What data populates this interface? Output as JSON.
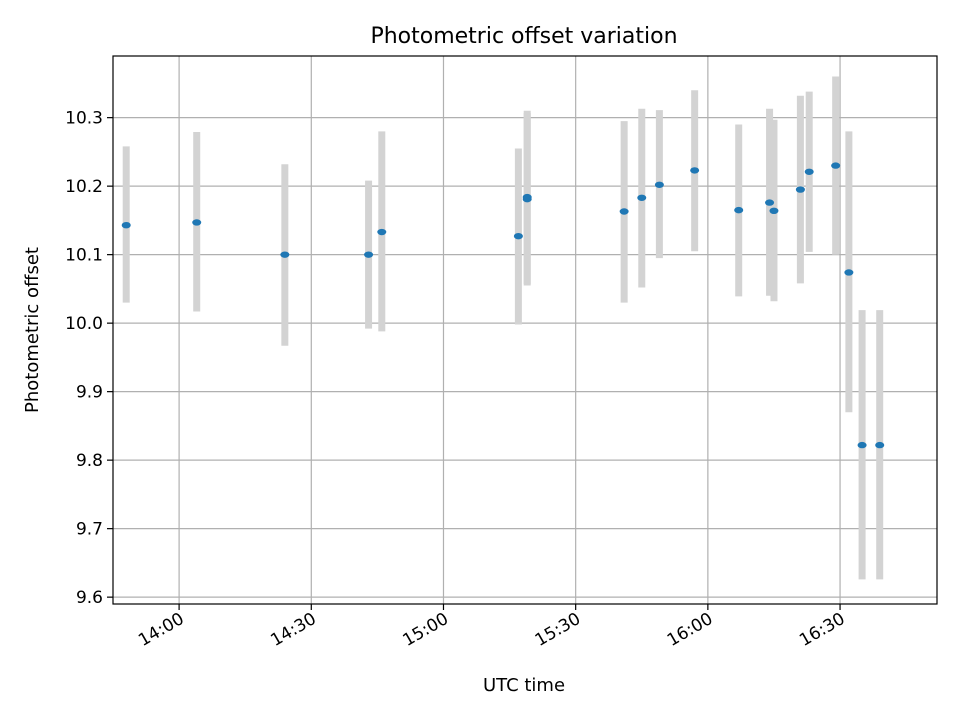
{
  "chart_data": {
    "type": "scatter",
    "title": "Photometric offset variation",
    "xlabel": "UTC time",
    "ylabel": "Photometric offset",
    "x_ticks": [
      "14:00",
      "14:30",
      "15:00",
      "15:30",
      "16:00",
      "16:30"
    ],
    "y_ticks": [
      "9.6",
      "9.7",
      "9.8",
      "9.9",
      "10.0",
      "10.1",
      "10.2",
      "10.3"
    ],
    "xlim": [
      "13:45",
      "16:52"
    ],
    "ylim": [
      9.59,
      10.39
    ],
    "grid": true,
    "colors": {
      "points": "#1f77b4",
      "errorbars": "#d3d3d3",
      "grid": "#b0b0b0"
    },
    "points": [
      {
        "x": "13:48",
        "y": 10.143,
        "ylow": 10.03,
        "yhigh": 10.258
      },
      {
        "x": "14:04",
        "y": 10.147,
        "ylow": 10.017,
        "yhigh": 10.279
      },
      {
        "x": "14:24",
        "y": 10.1,
        "ylow": 9.967,
        "yhigh": 10.232
      },
      {
        "x": "14:43",
        "y": 10.1,
        "ylow": 9.992,
        "yhigh": 10.208
      },
      {
        "x": "14:46",
        "y": 10.133,
        "ylow": 9.988,
        "yhigh": 10.28
      },
      {
        "x": "15:17",
        "y": 10.127,
        "ylow": 9.998,
        "yhigh": 10.255
      },
      {
        "x": "15:19",
        "y": 10.181,
        "ylow": 10.055,
        "yhigh": 10.307
      },
      {
        "x": "15:19",
        "y": 10.184,
        "ylow": 10.057,
        "yhigh": 10.31
      },
      {
        "x": "15:41",
        "y": 10.163,
        "ylow": 10.03,
        "yhigh": 10.295
      },
      {
        "x": "15:45",
        "y": 10.183,
        "ylow": 10.052,
        "yhigh": 10.313
      },
      {
        "x": "15:49",
        "y": 10.202,
        "ylow": 10.095,
        "yhigh": 10.311
      },
      {
        "x": "15:57",
        "y": 10.223,
        "ylow": 10.105,
        "yhigh": 10.34
      },
      {
        "x": "16:07",
        "y": 10.165,
        "ylow": 10.039,
        "yhigh": 10.29
      },
      {
        "x": "16:14",
        "y": 10.176,
        "ylow": 10.04,
        "yhigh": 10.313
      },
      {
        "x": "16:15",
        "y": 10.164,
        "ylow": 10.032,
        "yhigh": 10.297
      },
      {
        "x": "16:21",
        "y": 10.195,
        "ylow": 10.058,
        "yhigh": 10.332
      },
      {
        "x": "16:23",
        "y": 10.221,
        "ylow": 10.104,
        "yhigh": 10.338
      },
      {
        "x": "16:29",
        "y": 10.23,
        "ylow": 10.1,
        "yhigh": 10.36
      },
      {
        "x": "16:32",
        "y": 10.074,
        "ylow": 9.87,
        "yhigh": 10.28
      },
      {
        "x": "16:35",
        "y": 9.822,
        "ylow": 9.626,
        "yhigh": 10.019
      },
      {
        "x": "16:39",
        "y": 9.822,
        "ylow": 9.626,
        "yhigh": 10.019
      }
    ]
  }
}
